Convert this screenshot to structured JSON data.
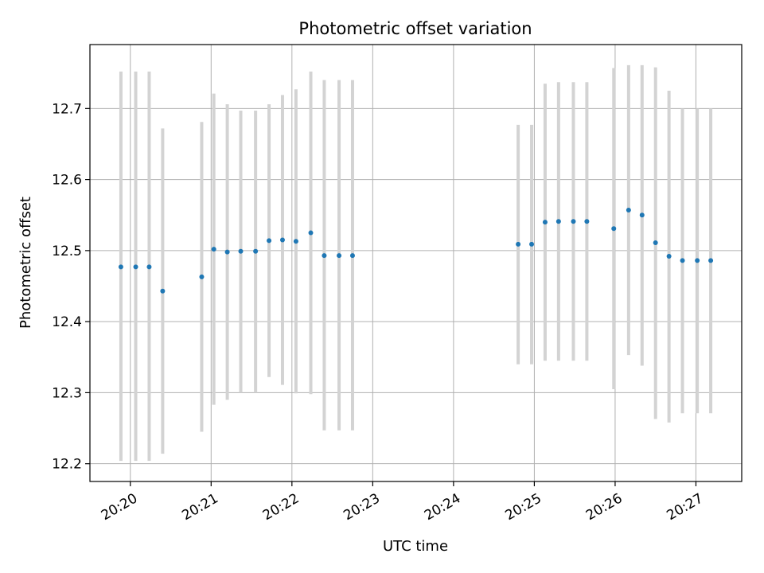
{
  "chart_data": {
    "type": "scatter",
    "title": "Photometric offset variation",
    "xlabel": "UTC time",
    "ylabel": "Photometric offset",
    "x_axis": {
      "kind": "time",
      "range": [
        "20:19:30",
        "20:27:34"
      ],
      "ticks": [
        "20:20",
        "20:21",
        "20:22",
        "20:23",
        "20:24",
        "20:25",
        "20:26",
        "20:27"
      ]
    },
    "y_axis": {
      "range": [
        12.175,
        12.79
      ],
      "ticks": [
        12.2,
        12.3,
        12.4,
        12.5,
        12.6,
        12.7
      ],
      "tick_labels": [
        "12.2",
        "12.3",
        "12.4",
        "12.5",
        "12.6",
        "12.7"
      ]
    },
    "grid": true,
    "colors": {
      "point": "#1f77b4",
      "errorbar": "#d3d3d3",
      "grid": "#b0b0b0"
    },
    "series": [
      {
        "points": [
          {
            "t": "20:19:53",
            "y": 12.477,
            "low": 12.204,
            "high": 12.752
          },
          {
            "t": "20:20:04",
            "y": 12.477,
            "low": 12.204,
            "high": 12.752
          },
          {
            "t": "20:20:14",
            "y": 12.477,
            "low": 12.204,
            "high": 12.752
          },
          {
            "t": "20:20:24",
            "y": 12.443,
            "low": 12.214,
            "high": 12.672
          },
          {
            "t": "20:20:53",
            "y": 12.463,
            "low": 12.245,
            "high": 12.681
          },
          {
            "t": "20:21:02",
            "y": 12.502,
            "low": 12.283,
            "high": 12.721
          },
          {
            "t": "20:21:12",
            "y": 12.498,
            "low": 12.29,
            "high": 12.706
          },
          {
            "t": "20:21:22",
            "y": 12.499,
            "low": 12.3,
            "high": 12.697
          },
          {
            "t": "20:21:33",
            "y": 12.499,
            "low": 12.3,
            "high": 12.697
          },
          {
            "t": "20:21:43",
            "y": 12.514,
            "low": 12.322,
            "high": 12.706
          },
          {
            "t": "20:21:53",
            "y": 12.515,
            "low": 12.311,
            "high": 12.719
          },
          {
            "t": "20:22:03",
            "y": 12.513,
            "low": 12.299,
            "high": 12.727
          },
          {
            "t": "20:22:14",
            "y": 12.525,
            "low": 12.298,
            "high": 12.752
          },
          {
            "t": "20:22:24",
            "y": 12.493,
            "low": 12.247,
            "high": 12.74
          },
          {
            "t": "20:22:35",
            "y": 12.493,
            "low": 12.247,
            "high": 12.74
          },
          {
            "t": "20:22:45",
            "y": 12.493,
            "low": 12.247,
            "high": 12.74
          },
          {
            "t": "20:24:48",
            "y": 12.509,
            "low": 12.34,
            "high": 12.677
          },
          {
            "t": "20:24:58",
            "y": 12.509,
            "low": 12.34,
            "high": 12.677
          },
          {
            "t": "20:25:08",
            "y": 12.54,
            "low": 12.345,
            "high": 12.735
          },
          {
            "t": "20:25:18",
            "y": 12.541,
            "low": 12.345,
            "high": 12.737
          },
          {
            "t": "20:25:29",
            "y": 12.541,
            "low": 12.345,
            "high": 12.737
          },
          {
            "t": "20:25:39",
            "y": 12.541,
            "low": 12.345,
            "high": 12.737
          },
          {
            "t": "20:25:59",
            "y": 12.531,
            "low": 12.305,
            "high": 12.757
          },
          {
            "t": "20:26:10",
            "y": 12.557,
            "low": 12.353,
            "high": 12.761
          },
          {
            "t": "20:26:20",
            "y": 12.55,
            "low": 12.338,
            "high": 12.761
          },
          {
            "t": "20:26:30",
            "y": 12.511,
            "low": 12.263,
            "high": 12.758
          },
          {
            "t": "20:26:40",
            "y": 12.492,
            "low": 12.258,
            "high": 12.725
          },
          {
            "t": "20:26:50",
            "y": 12.486,
            "low": 12.271,
            "high": 12.7
          },
          {
            "t": "20:27:01",
            "y": 12.486,
            "low": 12.271,
            "high": 12.7
          },
          {
            "t": "20:27:11",
            "y": 12.486,
            "low": 12.271,
            "high": 12.7
          }
        ]
      }
    ]
  }
}
